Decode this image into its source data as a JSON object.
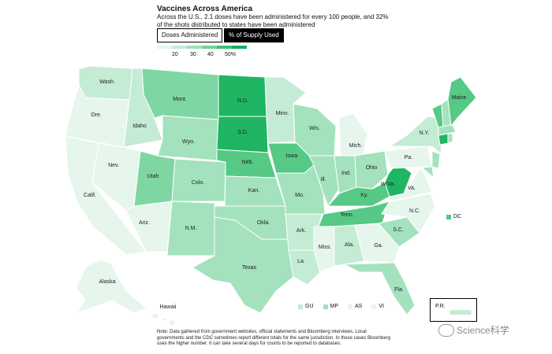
{
  "title": "Vaccines Across America",
  "subtitle": "Across the U.S., 2.1 doses have been administered for every 100 people, and 32% of the shots distributed to states have been administered",
  "tabs": [
    {
      "label": "Doses Administered",
      "active": false
    },
    {
      "label": "% of Supply Used",
      "active": true
    }
  ],
  "legend": {
    "ticks": [
      "20",
      "30",
      "40",
      "50%"
    ],
    "colors": [
      "#e6f6ed",
      "#c4ecd4",
      "#9fe0b8",
      "#73d19a",
      "#3fc07a",
      "#10b05c"
    ]
  },
  "colors": {
    "lightest": "#e6f6ed",
    "light": "#c4ecd4",
    "mid_light": "#a3e2bd",
    "mid": "#7ed7a3",
    "mid_dark": "#55c985",
    "dark": "#1fb563"
  },
  "states": {
    "wash": "Wash.",
    "ore": "Ore.",
    "calif": "Calif.",
    "idaho": "Idaho",
    "nev": "Nev.",
    "mont": "Mont.",
    "wyo": "Wyo.",
    "utah": "Utah",
    "ariz": "Ariz.",
    "colo": "Colo.",
    "nm": "N.M.",
    "nd": "N.D.",
    "sd": "S.D.",
    "neb": "Neb.",
    "kan": "Kan.",
    "okla": "Okla.",
    "texas": "Texas",
    "minn": "Minn.",
    "iowa": "Iowa",
    "mo": "Mo.",
    "ark": "Ark.",
    "la": "La.",
    "wis": "Wis.",
    "ill": "Ill.",
    "mich": "Mich.",
    "ind": "Ind.",
    "ohio": "Ohio",
    "ky": "Ky.",
    "tenn": "Tenn.",
    "miss": "Miss.",
    "ala": "Ala.",
    "ga": "Ga.",
    "fla": "Fla.",
    "sc": "S.C.",
    "nc": "N.C.",
    "va": "Va.",
    "wva": "W.Va.",
    "pa": "Pa.",
    "ny": "N.Y.",
    "maine": "Maine",
    "alaska": "Alaska",
    "hawaii": "Hawaii"
  },
  "dc_label": "DC",
  "territories": [
    {
      "label": "GU",
      "color": "#c4ecd4"
    },
    {
      "label": "MP",
      "color": "#9fe0b8"
    },
    {
      "label": "AS",
      "color": "#e6f6ed"
    },
    {
      "label": "VI",
      "color": "#e6f6ed"
    }
  ],
  "pr_label": "P.R.",
  "note": "Note: Data gathered from government websites, official statements and Bloomberg interviews. Local governments and the CDC sometimes report different totals for the same jurisdiction. In these cases Bloomberg uses the higher number. It can take several days for counts to be reported to databases.",
  "watermark": "Science科学"
}
